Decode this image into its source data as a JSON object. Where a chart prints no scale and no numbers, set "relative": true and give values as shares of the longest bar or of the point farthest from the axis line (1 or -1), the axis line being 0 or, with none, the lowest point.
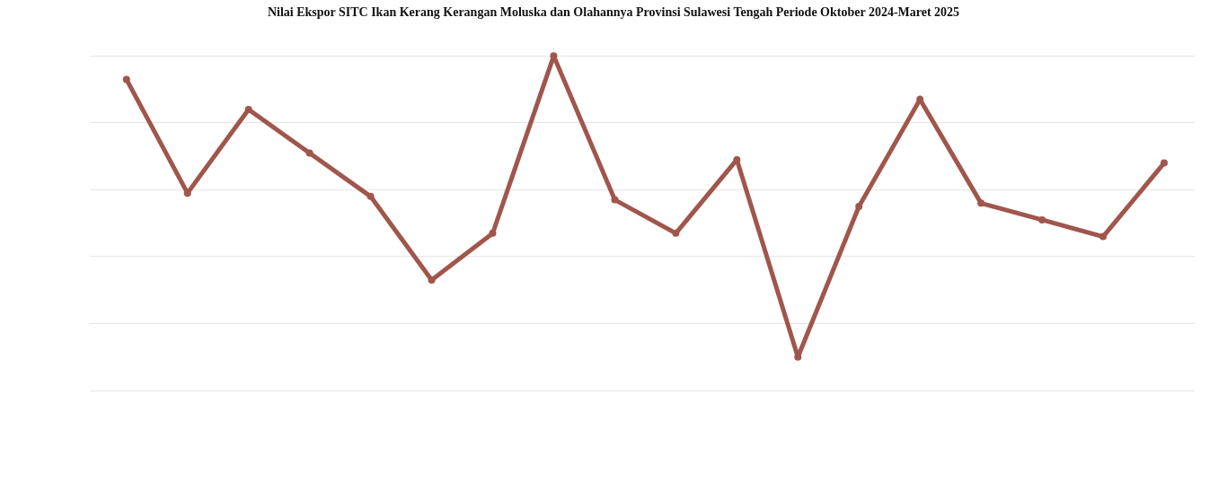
{
  "chart_data": {
    "type": "line",
    "title": "Nilai Ekspor SITC Ikan Kerang Kerangan Moluska dan Olahannya Provinsi Sulawesi Tengah Periode Oktober 2024-Maret 2025",
    "categories": [
      null,
      null,
      null,
      null,
      null,
      null,
      null,
      null,
      null,
      null,
      null,
      null,
      null,
      null,
      null,
      null,
      null,
      null
    ],
    "series": [
      {
        "color": "#a0564c",
        "values": [
          0.93,
          0.59,
          0.84,
          0.71,
          0.58,
          0.33,
          0.47,
          1.0,
          0.57,
          0.47,
          0.69,
          0.1,
          0.55,
          0.87,
          0.56,
          0.51,
          0.46,
          0.68
        ]
      }
    ],
    "relative": true,
    "grid": true,
    "marker": "circle",
    "line_style": "solid"
  }
}
